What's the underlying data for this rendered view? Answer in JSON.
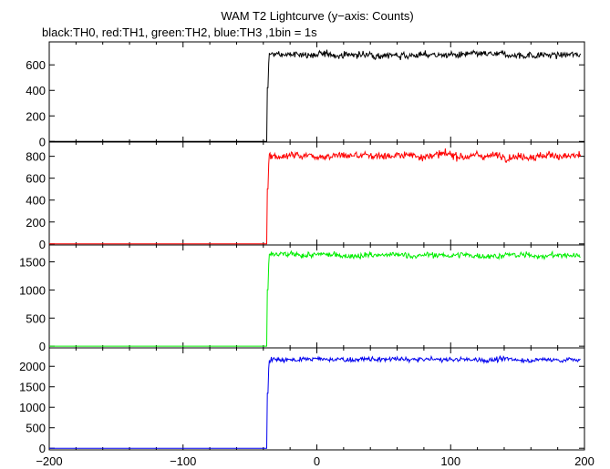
{
  "title": "WAM T2 Lightcurve (y−axis: Counts)",
  "subtitle": "black:TH0, red:TH1, green:TH2, blue:TH3 ,1bin = 1s",
  "chart_data": [
    {
      "type": "line",
      "series": [
        {
          "name": "TH0",
          "color": "#000000",
          "pre_level": 0,
          "post_level": 680,
          "step_time": -37,
          "noise": 18
        }
      ],
      "xlim": [
        -200,
        200
      ],
      "ylim": [
        -5,
        780
      ],
      "xticks": [
        -200,
        -100,
        0,
        100,
        200
      ],
      "yticks": [
        0,
        200,
        400,
        600
      ],
      "ytick_labels": [
        "0",
        "200",
        "400",
        "600"
      ],
      "xlabel": "",
      "ylabel": "",
      "grid": false
    },
    {
      "type": "line",
      "series": [
        {
          "name": "TH1",
          "color": "#ff0000",
          "pre_level": 0,
          "post_level": 810,
          "step_time": -37,
          "noise": 24
        }
      ],
      "xlim": [
        -200,
        200
      ],
      "ylim": [
        -10,
        930
      ],
      "xticks": [
        -200,
        -100,
        0,
        100,
        200
      ],
      "yticks": [
        0,
        200,
        400,
        600,
        800
      ],
      "ytick_labels": [
        "0",
        "200",
        "400",
        "600",
        "800"
      ],
      "xlabel": "",
      "ylabel": "",
      "grid": false
    },
    {
      "type": "line",
      "series": [
        {
          "name": "TH2",
          "color": "#00ee00",
          "pre_level": 0,
          "post_level": 1620,
          "step_time": -37,
          "noise": 35
        }
      ],
      "xlim": [
        -200,
        200
      ],
      "ylim": [
        -30,
        1800
      ],
      "xticks": [
        -200,
        -100,
        0,
        100,
        200
      ],
      "yticks": [
        0,
        500,
        1000,
        1500
      ],
      "ytick_labels": [
        "0",
        "500",
        "1000",
        "1500"
      ],
      "xlabel": "",
      "ylabel": "",
      "grid": false
    },
    {
      "type": "line",
      "series": [
        {
          "name": "TH3",
          "color": "#0000ee",
          "pre_level": 0,
          "post_level": 2170,
          "step_time": -37,
          "noise": 40
        }
      ],
      "xlim": [
        -200,
        200
      ],
      "ylim": [
        -40,
        2450
      ],
      "xticks": [
        -200,
        -100,
        0,
        100,
        200
      ],
      "yticks": [
        0,
        500,
        1000,
        1500,
        2000
      ],
      "ytick_labels": [
        "0",
        "500",
        "1000",
        "1500",
        "2000"
      ],
      "xtick_labels": [
        "−200",
        "−100",
        "0",
        "100",
        "200"
      ],
      "xlabel": "",
      "ylabel": "",
      "grid": false
    }
  ]
}
